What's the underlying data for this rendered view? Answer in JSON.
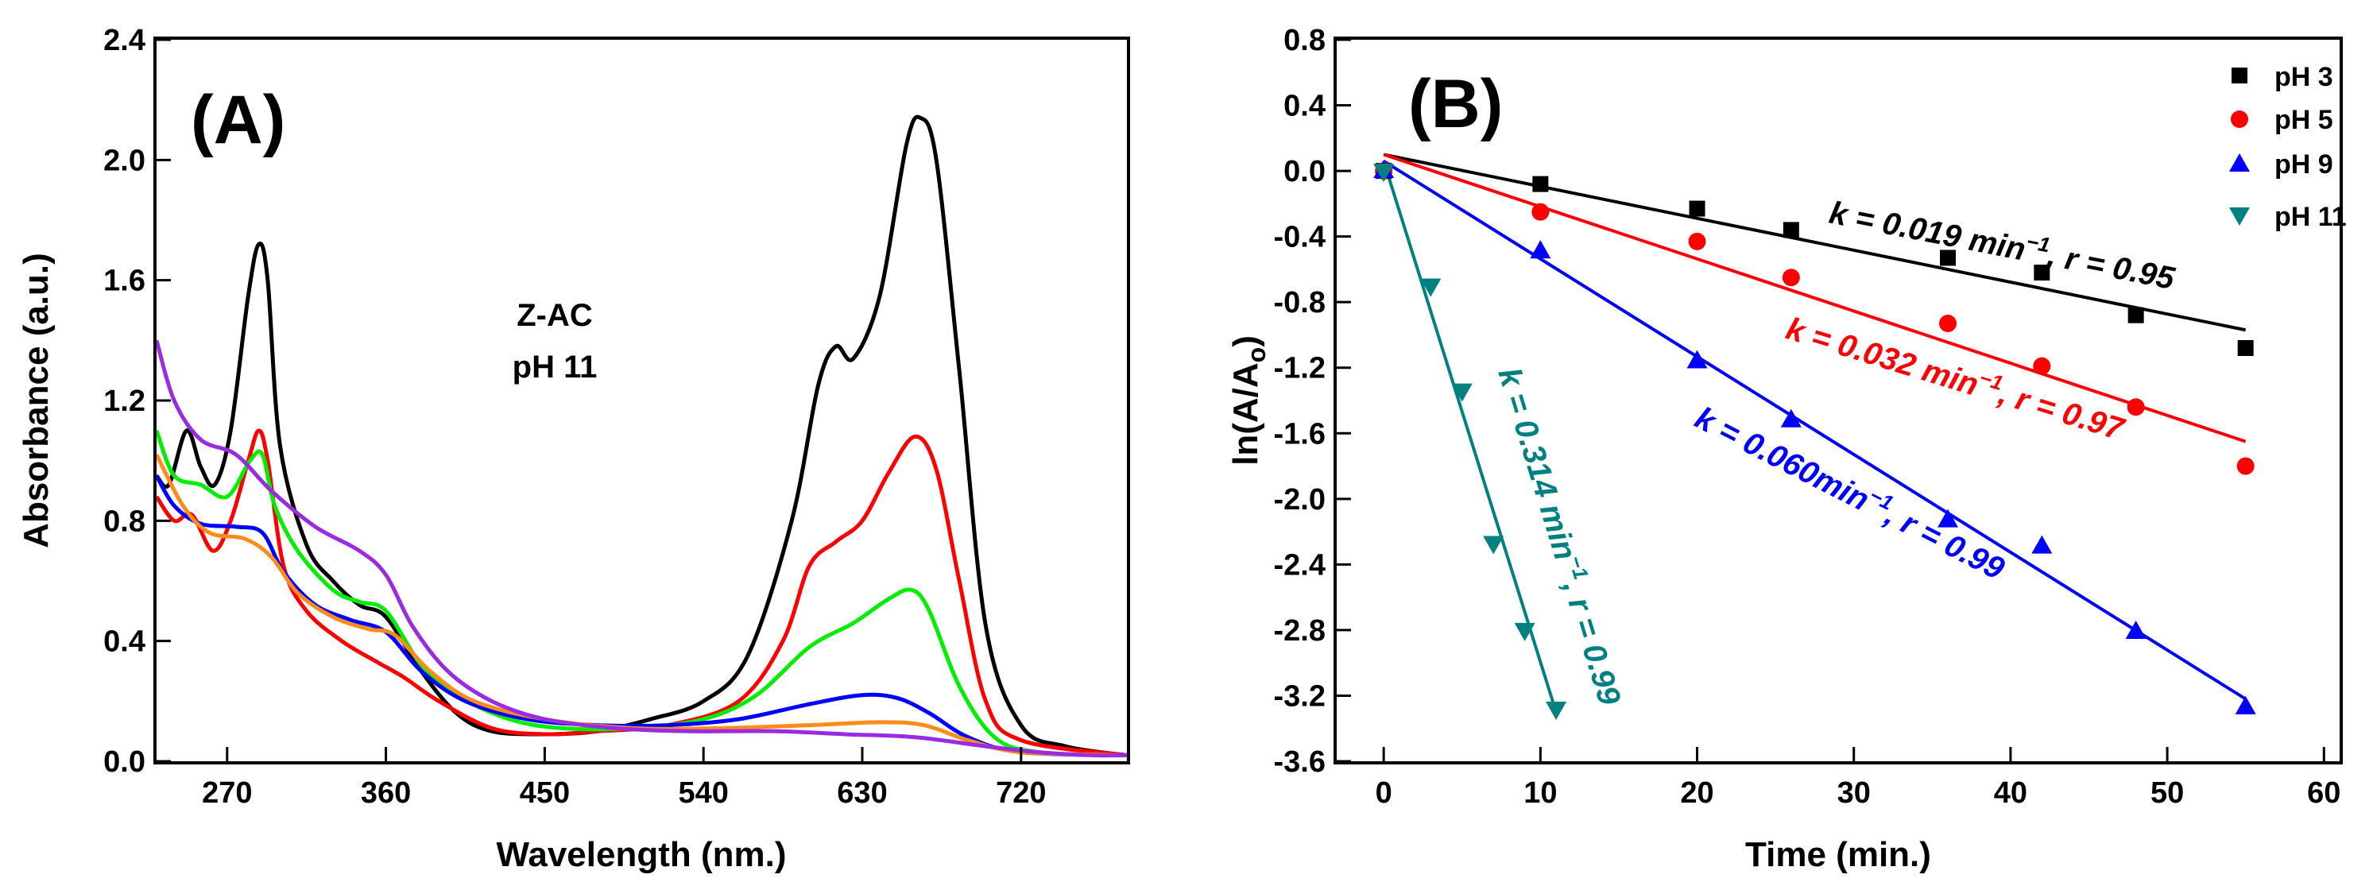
{
  "chart_data": [
    {
      "type": "line",
      "panel_label": "(A)",
      "title": "",
      "annotation": [
        "Z-AC",
        "pH 11"
      ],
      "xlabel": "Wavelength (nm.)",
      "ylabel": "Absorbance (a.u.)",
      "xlim": [
        230,
        780
      ],
      "ylim": [
        0.0,
        2.4
      ],
      "xticks": [
        270,
        360,
        450,
        540,
        630,
        720
      ],
      "xtick_labels": [
        "270",
        "360",
        "450",
        "540",
        "630",
        "720"
      ],
      "yticks": [
        0.0,
        0.4,
        0.8,
        1.2,
        1.6,
        2.0,
        2.4
      ],
      "ytick_labels": [
        "0.0",
        "0.4",
        "0.8",
        "1.2",
        "1.6",
        "2.0",
        "2.4"
      ],
      "series": [
        {
          "name": "black",
          "color": "#000000",
          "points": [
            [
              230,
              0.95
            ],
            [
              237,
              0.92
            ],
            [
              247,
              1.1
            ],
            [
              255,
              0.98
            ],
            [
              263,
              0.92
            ],
            [
              272,
              1.1
            ],
            [
              282,
              1.55
            ],
            [
              288,
              1.72
            ],
            [
              293,
              1.6
            ],
            [
              300,
              1.05
            ],
            [
              315,
              0.72
            ],
            [
              330,
              0.6
            ],
            [
              345,
              0.52
            ],
            [
              360,
              0.48
            ],
            [
              380,
              0.3
            ],
            [
              400,
              0.16
            ],
            [
              420,
              0.1
            ],
            [
              450,
              0.09
            ],
            [
              480,
              0.1
            ],
            [
              510,
              0.14
            ],
            [
              540,
              0.2
            ],
            [
              565,
              0.35
            ],
            [
              590,
              0.8
            ],
            [
              605,
              1.25
            ],
            [
              615,
              1.38
            ],
            [
              625,
              1.34
            ],
            [
              640,
              1.55
            ],
            [
              655,
              2.05
            ],
            [
              663,
              2.14
            ],
            [
              672,
              2.0
            ],
            [
              685,
              1.3
            ],
            [
              700,
              0.45
            ],
            [
              720,
              0.12
            ],
            [
              745,
              0.05
            ],
            [
              780,
              0.02
            ]
          ]
        },
        {
          "name": "red",
          "color": "#ff0000",
          "points": [
            [
              230,
              0.88
            ],
            [
              240,
              0.8
            ],
            [
              250,
              0.82
            ],
            [
              262,
              0.7
            ],
            [
              272,
              0.8
            ],
            [
              282,
              1.0
            ],
            [
              288,
              1.1
            ],
            [
              293,
              1.0
            ],
            [
              302,
              0.65
            ],
            [
              315,
              0.5
            ],
            [
              335,
              0.4
            ],
            [
              355,
              0.33
            ],
            [
              370,
              0.28
            ],
            [
              390,
              0.2
            ],
            [
              420,
              0.11
            ],
            [
              450,
              0.09
            ],
            [
              480,
              0.1
            ],
            [
              520,
              0.12
            ],
            [
              560,
              0.2
            ],
            [
              585,
              0.4
            ],
            [
              600,
              0.65
            ],
            [
              615,
              0.73
            ],
            [
              630,
              0.8
            ],
            [
              645,
              0.96
            ],
            [
              660,
              1.08
            ],
            [
              672,
              0.97
            ],
            [
              685,
              0.6
            ],
            [
              700,
              0.2
            ],
            [
              720,
              0.07
            ],
            [
              780,
              0.02
            ]
          ]
        },
        {
          "name": "green",
          "color": "#00ee00",
          "points": [
            [
              230,
              1.1
            ],
            [
              240,
              0.95
            ],
            [
              255,
              0.92
            ],
            [
              270,
              0.88
            ],
            [
              283,
              1.0
            ],
            [
              290,
              1.02
            ],
            [
              297,
              0.85
            ],
            [
              310,
              0.7
            ],
            [
              330,
              0.57
            ],
            [
              345,
              0.53
            ],
            [
              360,
              0.5
            ],
            [
              380,
              0.32
            ],
            [
              400,
              0.22
            ],
            [
              430,
              0.14
            ],
            [
              460,
              0.11
            ],
            [
              500,
              0.11
            ],
            [
              540,
              0.14
            ],
            [
              570,
              0.22
            ],
            [
              600,
              0.38
            ],
            [
              625,
              0.46
            ],
            [
              645,
              0.54
            ],
            [
              658,
              0.57
            ],
            [
              668,
              0.5
            ],
            [
              685,
              0.25
            ],
            [
              705,
              0.08
            ],
            [
              730,
              0.03
            ],
            [
              780,
              0.02
            ]
          ]
        },
        {
          "name": "blue",
          "color": "#0000ff",
          "points": [
            [
              230,
              0.95
            ],
            [
              240,
              0.85
            ],
            [
              255,
              0.79
            ],
            [
              275,
              0.78
            ],
            [
              290,
              0.76
            ],
            [
              302,
              0.63
            ],
            [
              320,
              0.52
            ],
            [
              340,
              0.47
            ],
            [
              360,
              0.43
            ],
            [
              380,
              0.3
            ],
            [
              405,
              0.2
            ],
            [
              440,
              0.14
            ],
            [
              480,
              0.12
            ],
            [
              520,
              0.12
            ],
            [
              560,
              0.14
            ],
            [
              600,
              0.19
            ],
            [
              630,
              0.22
            ],
            [
              650,
              0.21
            ],
            [
              668,
              0.16
            ],
            [
              690,
              0.08
            ],
            [
              720,
              0.03
            ],
            [
              780,
              0.02
            ]
          ]
        },
        {
          "name": "orange",
          "color": "#ff8c1a",
          "points": [
            [
              230,
              1.02
            ],
            [
              245,
              0.85
            ],
            [
              260,
              0.76
            ],
            [
              280,
              0.74
            ],
            [
              295,
              0.68
            ],
            [
              310,
              0.56
            ],
            [
              330,
              0.48
            ],
            [
              350,
              0.44
            ],
            [
              365,
              0.42
            ],
            [
              385,
              0.3
            ],
            [
              410,
              0.2
            ],
            [
              450,
              0.14
            ],
            [
              500,
              0.11
            ],
            [
              550,
              0.11
            ],
            [
              600,
              0.12
            ],
            [
              640,
              0.13
            ],
            [
              665,
              0.12
            ],
            [
              690,
              0.07
            ],
            [
              720,
              0.03
            ],
            [
              780,
              0.02
            ]
          ]
        },
        {
          "name": "purple",
          "color": "#9a2be0",
          "points": [
            [
              230,
              1.4
            ],
            [
              240,
              1.2
            ],
            [
              255,
              1.07
            ],
            [
              275,
              1.02
            ],
            [
              295,
              0.9
            ],
            [
              320,
              0.78
            ],
            [
              345,
              0.7
            ],
            [
              360,
              0.62
            ],
            [
              375,
              0.45
            ],
            [
              395,
              0.3
            ],
            [
              420,
              0.2
            ],
            [
              450,
              0.14
            ],
            [
              490,
              0.11
            ],
            [
              530,
              0.1
            ],
            [
              580,
              0.1
            ],
            [
              620,
              0.09
            ],
            [
              660,
              0.08
            ],
            [
              700,
              0.05
            ],
            [
              730,
              0.03
            ],
            [
              760,
              0.02
            ],
            [
              780,
              0.02
            ]
          ]
        }
      ]
    },
    {
      "type": "scatter",
      "panel_label": "(B)",
      "title": "",
      "xlabel": "Time (min.)",
      "ylabel_main": "ln(A/A",
      "ylabel_sub": "o",
      "ylabel_close": ")",
      "xlim": [
        -3,
        61
      ],
      "ylim": [
        -3.6,
        0.8
      ],
      "xticks": [
        0,
        10,
        20,
        30,
        40,
        50,
        60
      ],
      "xtick_labels": [
        "0",
        "10",
        "20",
        "30",
        "40",
        "50",
        "60"
      ],
      "yticks": [
        0.8,
        0.4,
        0.0,
        -0.4,
        -0.8,
        -1.2,
        -1.6,
        -2.0,
        -2.4,
        -2.8,
        -3.2,
        -3.6
      ],
      "ytick_labels": [
        "0.8",
        "0.4",
        "0.0",
        "-0.4",
        "-0.8",
        "-1.2",
        "-1.6",
        "-2.0",
        "-2.4",
        "-2.8",
        "-3.2",
        "-3.6"
      ],
      "legend_position": "top-right",
      "series": [
        {
          "name": "pH 3",
          "color": "#000000",
          "marker": "square",
          "x": [
            0,
            10,
            20,
            26,
            36,
            42,
            48,
            55
          ],
          "y": [
            0.0,
            -0.08,
            -0.23,
            -0.36,
            -0.53,
            -0.62,
            -0.88,
            -1.08
          ],
          "fit": {
            "x": [
              0,
              55
            ],
            "y": [
              0.1,
              -0.97
            ]
          },
          "fit_label": [
            "k = 0.019 min",
            "−1",
            ", r = 0.95"
          ]
        },
        {
          "name": "pH 5",
          "color": "#ff0000",
          "marker": "circle",
          "x": [
            0,
            10,
            20,
            26,
            36,
            42,
            48,
            55
          ],
          "y": [
            0.0,
            -0.25,
            -0.43,
            -0.65,
            -0.93,
            -1.19,
            -1.44,
            -1.8
          ],
          "fit": {
            "x": [
              0,
              55
            ],
            "y": [
              0.1,
              -1.65
            ]
          },
          "fit_label": [
            "k = 0.032 min",
            "−1",
            ", r = 0.97"
          ]
        },
        {
          "name": "pH 9",
          "color": "#0000ff",
          "marker": "triangle-up",
          "x": [
            0,
            10,
            20,
            26,
            36,
            42,
            48,
            55
          ],
          "y": [
            0.0,
            -0.49,
            -1.16,
            -1.52,
            -2.13,
            -2.29,
            -2.81,
            -3.27
          ],
          "fit": {
            "x": [
              0,
              55
            ],
            "y": [
              0.06,
              -3.22
            ]
          },
          "fit_label": [
            "k = 0.060min",
            "−1",
            ", r = 0.99"
          ]
        },
        {
          "name": "pH 11",
          "color": "#008080",
          "marker": "triangle-down",
          "x": [
            0,
            3,
            5,
            7,
            9,
            11
          ],
          "y": [
            0.0,
            -0.7,
            -1.34,
            -2.27,
            -2.8,
            -3.28
          ],
          "fit": {
            "x": [
              0,
              11
            ],
            "y": [
              0.06,
              -3.3
            ]
          },
          "fit_label": [
            "k = 0.314 min",
            "−1",
            ", r = 0.99"
          ]
        }
      ]
    }
  ]
}
